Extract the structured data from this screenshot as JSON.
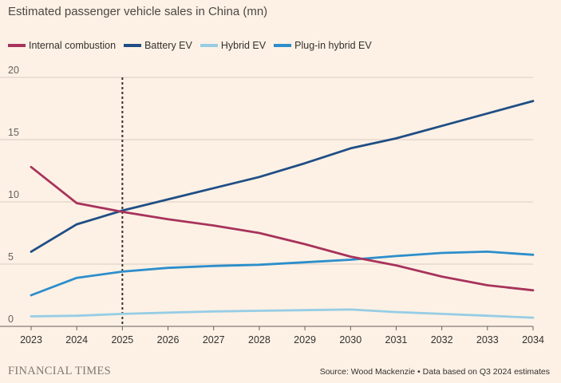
{
  "chart_data": {
    "type": "line",
    "title": "Estimated passenger vehicle sales in China (mn)",
    "x": [
      "2023",
      "2024",
      "2025",
      "2026",
      "2027",
      "2028",
      "2029",
      "2030",
      "2031",
      "2032",
      "2033",
      "2034"
    ],
    "ylim": [
      0,
      20
    ],
    "yticks": [
      "0",
      "5",
      "10",
      "15",
      "20"
    ],
    "grid": true,
    "legend_position": "top-left",
    "marker_year": "2025",
    "series": [
      {
        "name": "Internal combustion",
        "color": "#a7335b",
        "values": [
          12.8,
          9.9,
          9.2,
          8.6,
          8.1,
          7.5,
          6.6,
          5.6,
          4.9,
          4.0,
          3.3,
          2.9
        ]
      },
      {
        "name": "Battery EV",
        "color": "#1f4e85",
        "values": [
          6.0,
          8.2,
          9.3,
          10.2,
          11.1,
          12.0,
          13.1,
          14.3,
          15.1,
          16.1,
          17.1,
          18.1
        ]
      },
      {
        "name": "Hybrid EV",
        "color": "#96cde5",
        "values": [
          0.8,
          0.85,
          1.0,
          1.1,
          1.2,
          1.25,
          1.3,
          1.35,
          1.15,
          1.0,
          0.85,
          0.7
        ]
      },
      {
        "name": "Plug-in hybrid EV",
        "color": "#2c8ecb",
        "values": [
          2.5,
          3.9,
          4.4,
          4.7,
          4.85,
          4.95,
          5.15,
          5.35,
          5.65,
          5.9,
          6.0,
          5.75
        ]
      }
    ]
  },
  "footer": {
    "brand": "FINANCIAL TIMES",
    "source": "Source: Wood Mackenzie • Data based on Q3 2024 estimates"
  }
}
